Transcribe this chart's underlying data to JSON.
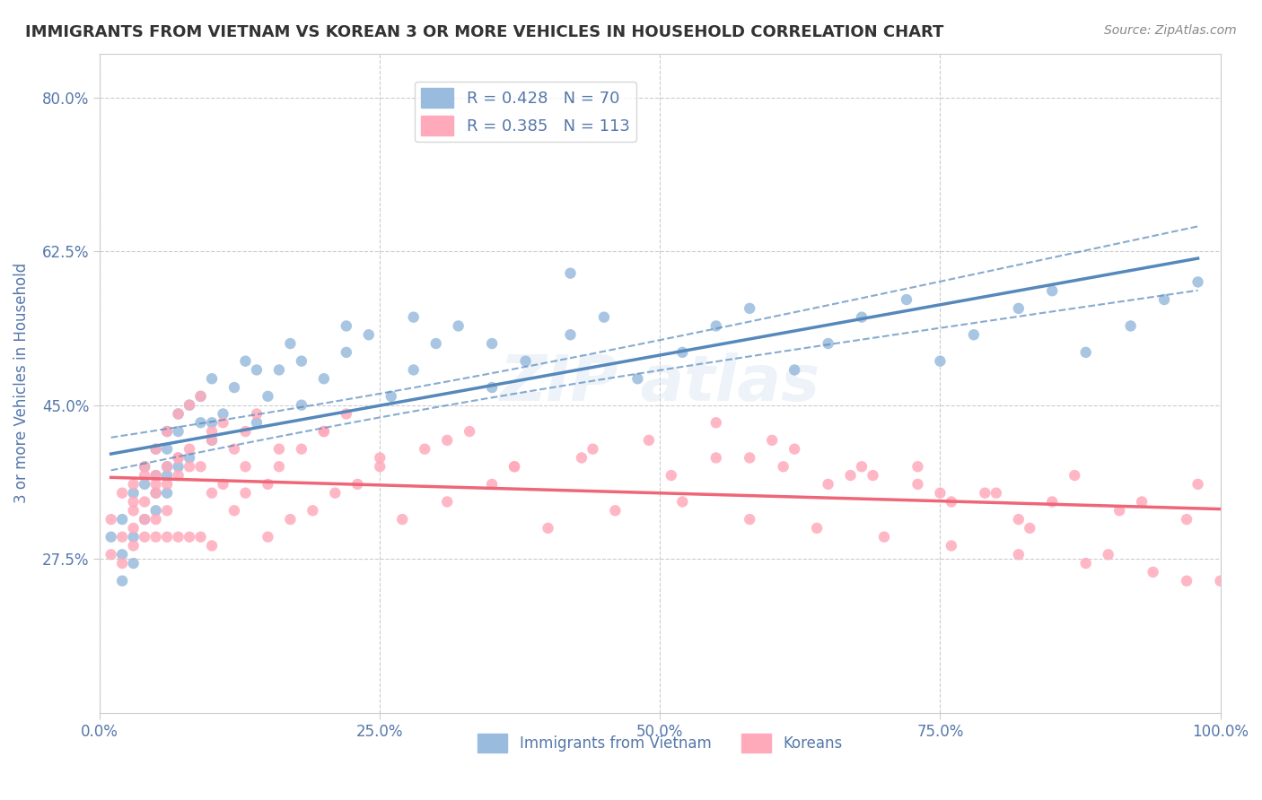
{
  "title": "IMMIGRANTS FROM VIETNAM VS KOREAN 3 OR MORE VEHICLES IN HOUSEHOLD CORRELATION CHART",
  "source": "Source: ZipAtlas.com",
  "xlabel": "",
  "ylabel": "3 or more Vehicles in Household",
  "xlim": [
    0.0,
    100.0
  ],
  "ylim": [
    10.0,
    85.0
  ],
  "yticks": [
    27.5,
    45.0,
    62.5,
    80.0
  ],
  "xticks": [
    0.0,
    25.0,
    50.0,
    75.0,
    100.0
  ],
  "xtick_labels": [
    "0.0%",
    "25.0%",
    "50.0%",
    "75.0%",
    "100.0%"
  ],
  "ytick_labels": [
    "27.5%",
    "45.0%",
    "62.5%",
    "80.0%"
  ],
  "blue_color": "#6699CC",
  "pink_color": "#FF8899",
  "blue_dot_color": "#99BBDD",
  "pink_dot_color": "#FFAABB",
  "trend_blue": "#5588BB",
  "trend_pink": "#EE6677",
  "R_vietnam": 0.428,
  "N_vietnam": 70,
  "R_korean": 0.385,
  "N_korean": 113,
  "legend_label_vietnam": "Immigrants from Vietnam",
  "legend_label_korean": "Koreans",
  "watermark": "ZIPAtlas",
  "background_color": "#FFFFFF",
  "grid_color": "#CCCCCC",
  "axis_color": "#8888AA",
  "title_color": "#333333",
  "label_color": "#5577AA",
  "vietnam_scatter_x": [
    1,
    2,
    2,
    3,
    3,
    3,
    4,
    4,
    4,
    5,
    5,
    5,
    5,
    6,
    6,
    6,
    6,
    7,
    7,
    7,
    8,
    8,
    9,
    9,
    10,
    10,
    11,
    12,
    13,
    14,
    15,
    16,
    17,
    18,
    20,
    22,
    24,
    26,
    28,
    30,
    32,
    35,
    38,
    42,
    45,
    48,
    52,
    55,
    58,
    62,
    65,
    68,
    72,
    75,
    78,
    82,
    85,
    88,
    92,
    95,
    98,
    2,
    6,
    10,
    14,
    18,
    22,
    28,
    35,
    42
  ],
  "vietnam_scatter_y": [
    30,
    32,
    28,
    35,
    27,
    30,
    38,
    32,
    36,
    40,
    33,
    35,
    37,
    42,
    38,
    35,
    40,
    44,
    38,
    42,
    45,
    39,
    43,
    46,
    48,
    41,
    44,
    47,
    50,
    43,
    46,
    49,
    52,
    45,
    48,
    51,
    53,
    46,
    49,
    52,
    54,
    47,
    50,
    53,
    55,
    48,
    51,
    54,
    56,
    49,
    52,
    55,
    57,
    50,
    53,
    56,
    58,
    51,
    54,
    57,
    59,
    25,
    37,
    43,
    49,
    50,
    54,
    55,
    52,
    60
  ],
  "korean_scatter_x": [
    1,
    1,
    2,
    2,
    2,
    3,
    3,
    3,
    3,
    4,
    4,
    4,
    4,
    4,
    5,
    5,
    5,
    5,
    5,
    6,
    6,
    6,
    6,
    6,
    7,
    7,
    7,
    7,
    8,
    8,
    8,
    8,
    9,
    9,
    9,
    10,
    10,
    10,
    11,
    11,
    12,
    12,
    13,
    13,
    14,
    15,
    15,
    16,
    17,
    18,
    19,
    20,
    21,
    22,
    23,
    25,
    27,
    29,
    31,
    33,
    35,
    37,
    40,
    43,
    46,
    49,
    52,
    55,
    58,
    61,
    64,
    67,
    70,
    73,
    76,
    79,
    82,
    85,
    88,
    91,
    94,
    97,
    100,
    3,
    5,
    7,
    10,
    13,
    16,
    20,
    25,
    31,
    37,
    44,
    51,
    58,
    65,
    73,
    80,
    87,
    93,
    98,
    55,
    62,
    69,
    76,
    83,
    90,
    97,
    60,
    68,
    75,
    82
  ],
  "korean_scatter_y": [
    28,
    32,
    30,
    27,
    35,
    33,
    29,
    36,
    31,
    38,
    34,
    30,
    37,
    32,
    40,
    35,
    30,
    37,
    32,
    42,
    36,
    30,
    38,
    33,
    44,
    37,
    30,
    39,
    45,
    38,
    30,
    40,
    46,
    38,
    30,
    42,
    35,
    29,
    43,
    36,
    40,
    33,
    42,
    35,
    44,
    36,
    30,
    38,
    32,
    40,
    33,
    42,
    35,
    44,
    36,
    38,
    32,
    40,
    34,
    42,
    36,
    38,
    31,
    39,
    33,
    41,
    34,
    39,
    32,
    38,
    31,
    37,
    30,
    36,
    29,
    35,
    28,
    34,
    27,
    33,
    26,
    32,
    25,
    34,
    36,
    39,
    41,
    38,
    40,
    42,
    39,
    41,
    38,
    40,
    37,
    39,
    36,
    38,
    35,
    37,
    34,
    36,
    43,
    40,
    37,
    34,
    31,
    28,
    25,
    41,
    38,
    35,
    32
  ]
}
